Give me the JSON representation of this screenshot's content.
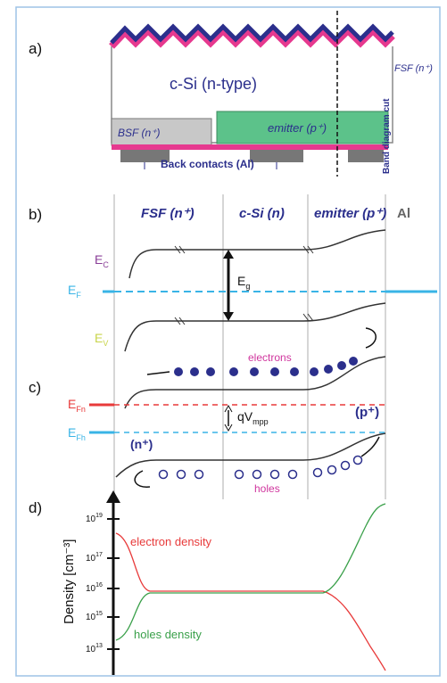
{
  "panel_a": {
    "label": "a)",
    "bulk": "c-Si (n-type)",
    "fsf": "FSF (n⁺)",
    "bsf": "BSF (n⁺)",
    "emitter": "emitter (p⁺)",
    "contacts": "Back contacts (Al)",
    "cut": "Band diagram cut"
  },
  "panel_b": {
    "label": "b)",
    "regions": [
      "FSF (n⁺)",
      "c-Si (n)",
      "emitter (p⁺)",
      "Al"
    ],
    "ec": {
      "main": "E",
      "sub": "C"
    },
    "ef": {
      "main": "E",
      "sub": "F"
    },
    "eg": {
      "main": "E",
      "sub": "g"
    },
    "ev": {
      "main": "E",
      "sub": "V"
    }
  },
  "panel_c": {
    "label": "c)",
    "electrons": "electrons",
    "p_plus": "(p⁺)",
    "efn": {
      "main": "E",
      "sub": "Fn"
    },
    "qv": {
      "main": "qV",
      "sub": "mpp"
    },
    "efh": {
      "main": "E",
      "sub": "Fh"
    },
    "n_plus": "(n⁺)",
    "holes": "holes"
  },
  "panel_d": {
    "label": "d)",
    "axis_label": "Density [cm⁻³]",
    "ticks": [
      {
        "base": "10",
        "exp": "19"
      },
      {
        "base": "10",
        "exp": "17"
      },
      {
        "base": "10",
        "exp": "16"
      },
      {
        "base": "10",
        "exp": "15"
      },
      {
        "base": "10",
        "exp": "13"
      }
    ],
    "electron_label": "electron density",
    "holes_label": "holes density"
  }
}
